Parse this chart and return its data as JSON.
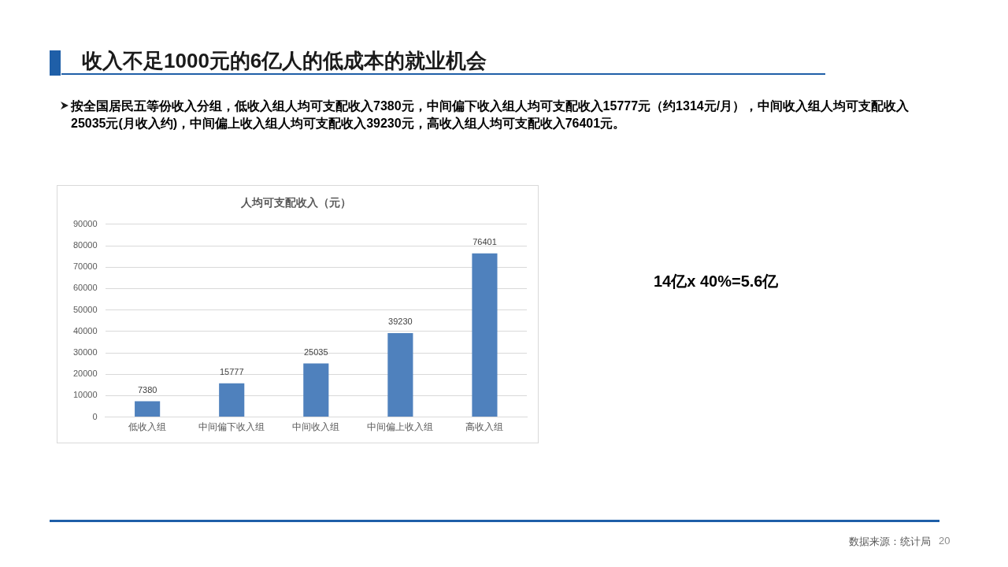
{
  "chart_data": {
    "type": "bar",
    "title": "人均可支配收入（元）",
    "subtitle": "收入不足1000元的6亿人的低成本的就业机会",
    "categories": [
      "低收入组",
      "中间偏下收入组",
      "中间收入组",
      "中间偏上收入组",
      "高收入组"
    ],
    "values": [
      7380,
      15777,
      25035,
      39230,
      76401
    ],
    "color": "#4f81bd",
    "ylim": [
      0,
      90000
    ],
    "yticks": [
      0,
      10000,
      20000,
      30000,
      40000,
      50000,
      60000,
      70000,
      80000,
      90000
    ],
    "grid": "y",
    "data_labels": true,
    "legend": false,
    "annotations": [
      "按全国居民五等份收入分组，低收入组人均可支配收入7380元，中间偏下收入组人均可支配收入15777元（约1314元/月），中间收入组人均可支配收入25035元(月收入约)，中间偏上收入组人均可支配收入39230元，高收入组人均可支配收入76401元。",
      "14亿x 40%=5.6亿",
      "数据来源：统计局",
      "20"
    ]
  }
}
